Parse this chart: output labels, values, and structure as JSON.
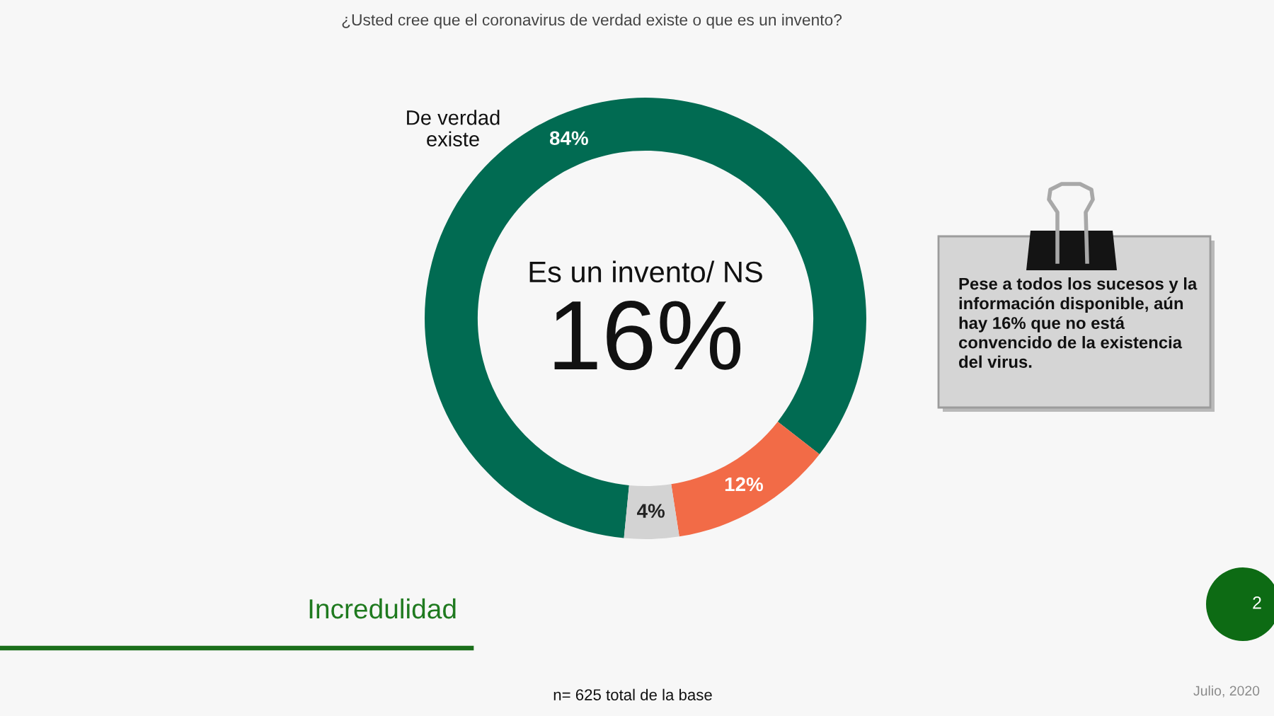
{
  "chart_data": {
    "type": "donut",
    "title": "¿Usted cree que el coronavirus de verdad existe o que es un invento?",
    "categories": [
      "De verdad existe",
      null,
      null
    ],
    "values": [
      84,
      12,
      4
    ],
    "colors": [
      "#016b52",
      "#f26b47",
      "#d3d3d3"
    ],
    "value_labels": [
      "84%",
      "12%",
      "4%"
    ],
    "annotations": [
      "Es un invento/ NS",
      "16%",
      "Pese a todos los sucesos y la información disponible, aún hay 16% que no está convencido de la existencia del virus.",
      "Incredulidad",
      "n= 625 total de la base",
      "Julio, 2020",
      "2"
    ]
  }
}
